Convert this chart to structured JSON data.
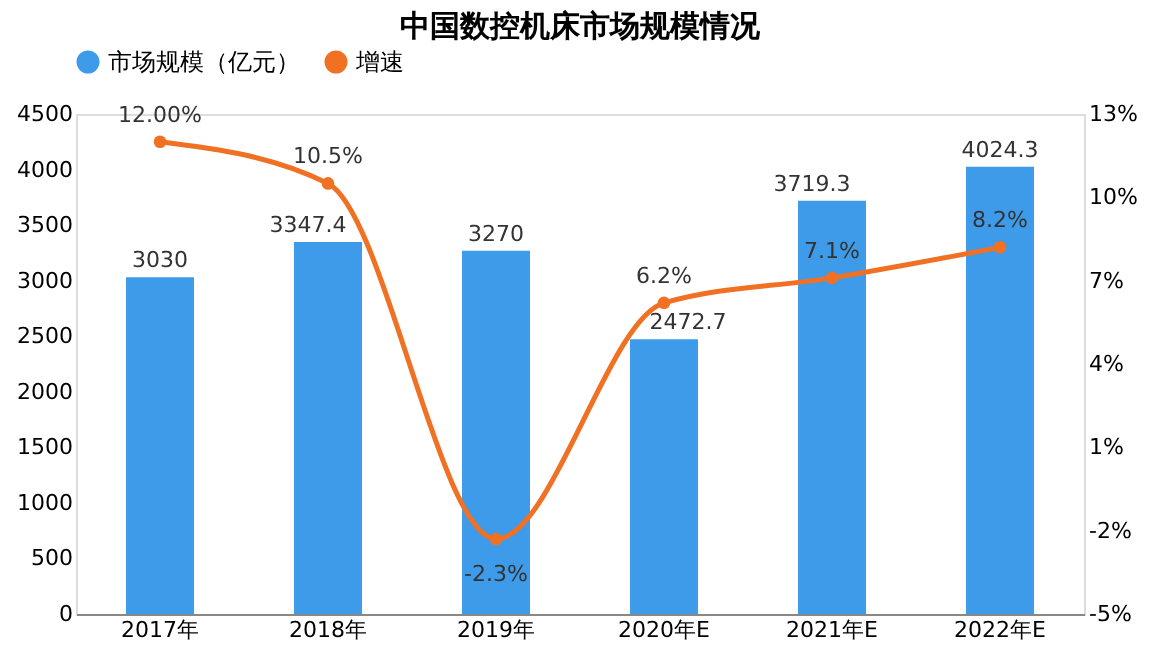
{
  "chart_data": {
    "type": "bar",
    "title": "中国数控机床市场规模情况",
    "categories": [
      "2017年",
      "2018年",
      "2019年",
      "2020年E",
      "2021年E",
      "2022年E"
    ],
    "series": [
      {
        "name": "市场规模（亿元）",
        "color": "#3d9be9",
        "values": [
          3030,
          3347.4,
          3270,
          2472.7,
          3719.3,
          4024.3
        ],
        "value_labels": [
          "3030",
          "3347.4",
          "3270",
          "2472.7",
          "3719.3",
          "4024.3"
        ]
      },
      {
        "name": "增速",
        "type": "line",
        "axis": "y2",
        "color": "#f07123",
        "marker": "circle",
        "values": [
          12.0,
          10.5,
          -2.3,
          6.2,
          7.1,
          8.2
        ],
        "value_labels": [
          "12.00%",
          "10.5%",
          "-2.3%",
          "6.2%",
          "7.1%",
          "8.2%"
        ]
      }
    ],
    "ylim": [
      0,
      4500
    ],
    "yticks": [
      0,
      500,
      1000,
      1500,
      2000,
      2500,
      3000,
      3500,
      4000,
      4500
    ],
    "y2lim": [
      -5,
      13
    ],
    "y2ticks": [
      {
        "value": -5,
        "label": "-5%"
      },
      {
        "value": -2,
        "label": "-2%"
      },
      {
        "value": 1,
        "label": "1%"
      },
      {
        "value": 4,
        "label": "4%"
      },
      {
        "value": 7,
        "label": "7%"
      },
      {
        "value": 10,
        "label": "10%"
      },
      {
        "value": 13,
        "label": "13%"
      }
    ],
    "grid": false,
    "legend": "top"
  }
}
